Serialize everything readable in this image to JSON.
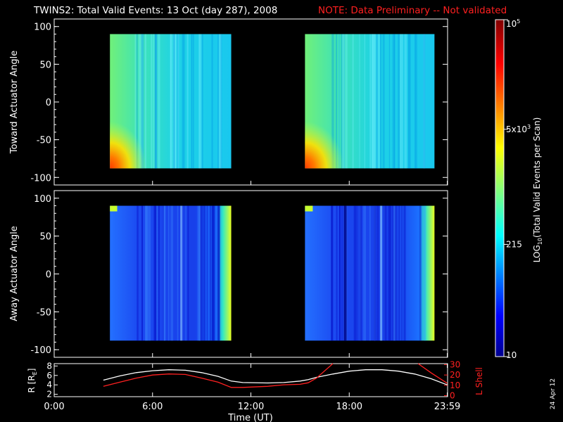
{
  "header": {
    "title": "TWINS2: Total Valid Events: 13 Oct (day 287), 2008",
    "note": "NOTE: Data Preliminary -- Not validated"
  },
  "footer": {
    "stamp": "24 Apr 12"
  },
  "colors": {
    "background": "#000000",
    "axes": "#ffffff",
    "note": "#ff2020",
    "l_shell_line": "#ff2020",
    "r_line": "#ffffff"
  },
  "chart_data": [
    {
      "type": "heatmap",
      "panel": "toward",
      "ylabel": "Toward Actuator Angle",
      "xlabel": "",
      "xlim": [
        0,
        24
      ],
      "ylim": [
        -110,
        110
      ],
      "yticks": [
        100,
        50,
        0,
        -50,
        -100
      ],
      "data_blocks_ut": [
        [
          3.4,
          10.8
        ],
        [
          15.3,
          23.2
        ]
      ],
      "angle_range": [
        -88,
        90
      ],
      "dominant_log10_level": 2.8,
      "hot_spot": "bottom-left of each block near -88 deg"
    },
    {
      "type": "heatmap",
      "panel": "away",
      "ylabel": "Away Actuator Angle",
      "xlabel": "",
      "xlim": [
        0,
        24
      ],
      "ylim": [
        -110,
        110
      ],
      "yticks": [
        100,
        50,
        0,
        -50,
        -100
      ],
      "data_blocks_ut": [
        [
          3.4,
          10.8
        ],
        [
          15.3,
          23.2
        ]
      ],
      "angle_range": [
        -88,
        90
      ],
      "dominant_log10_level": 1.7,
      "hot_spot": "right edge of each block"
    },
    {
      "type": "line",
      "panel": "orbit",
      "xlabel": "Time (UT)",
      "xticks": [
        "0:00",
        "6:00",
        "12:00",
        "18:00",
        "23:59"
      ],
      "xtick_values": [
        0,
        6,
        12,
        18,
        23.98
      ],
      "left_axis": {
        "label": "R [R",
        "label_sub": "E",
        "label_end": "]",
        "ticks": [
          "8",
          "6",
          "4",
          "2"
        ],
        "tick_values": [
          8,
          6,
          4,
          2
        ],
        "ylim": [
          1.5,
          8.5
        ]
      },
      "right_axis": {
        "label": "L Shell",
        "ticks": [
          "30",
          "20",
          "10",
          "0"
        ],
        "tick_values": [
          30,
          20,
          10,
          0
        ],
        "ylim": [
          -1,
          31
        ]
      },
      "series": [
        {
          "axis": "left",
          "color": "#ffffff",
          "x": [
            3.0,
            4.0,
            5.0,
            6.0,
            7.0,
            8.0,
            9.0,
            10.0,
            10.8,
            11.5,
            13.0,
            14.0,
            15.0,
            15.5,
            16.0,
            17.0,
            18.0,
            19.0,
            20.0,
            21.0,
            22.0,
            23.0,
            23.98
          ],
          "y": [
            5.0,
            5.9,
            6.6,
            7.0,
            7.2,
            7.1,
            6.6,
            5.8,
            4.8,
            4.5,
            4.4,
            4.5,
            4.8,
            5.1,
            5.6,
            6.3,
            6.9,
            7.2,
            7.2,
            6.9,
            6.3,
            5.3,
            4.0
          ]
        },
        {
          "axis": "right",
          "color": "#ff2020",
          "x": [
            3.0,
            4.0,
            5.0,
            6.0,
            7.0,
            8.0,
            9.0,
            10.0,
            10.8,
            11.5,
            13.0,
            14.0,
            15.0,
            15.5,
            16.0,
            16.5,
            17.0
          ],
          "y": [
            9.0,
            13.0,
            17.0,
            20.0,
            21.0,
            20.5,
            17.0,
            13.0,
            8.0,
            8.0,
            9.0,
            10.5,
            11.0,
            12.5,
            17.0,
            24.0,
            33.0
          ]
        },
        {
          "axis": "right",
          "color": "#ff2020",
          "x": [
            22.2,
            23.0,
            23.98
          ],
          "y": [
            33.0,
            22.0,
            12.0
          ]
        }
      ]
    },
    {
      "type": "heatmap",
      "panel": "colorbar",
      "ylabel": "LOG",
      "ylabel_sub": "10",
      "ylabel_rest": "(Total Valid Events per Scan)",
      "scale": "log",
      "range": [
        10,
        100000
      ],
      "ticks": [
        {
          "value": 10,
          "base": "10",
          "exp": ""
        },
        {
          "value": 215,
          "base": "215",
          "exp": ""
        },
        {
          "value": 5000,
          "base": "5x10",
          "exp": "3"
        },
        {
          "value": 100000,
          "base": "10",
          "exp": "5"
        }
      ]
    }
  ]
}
